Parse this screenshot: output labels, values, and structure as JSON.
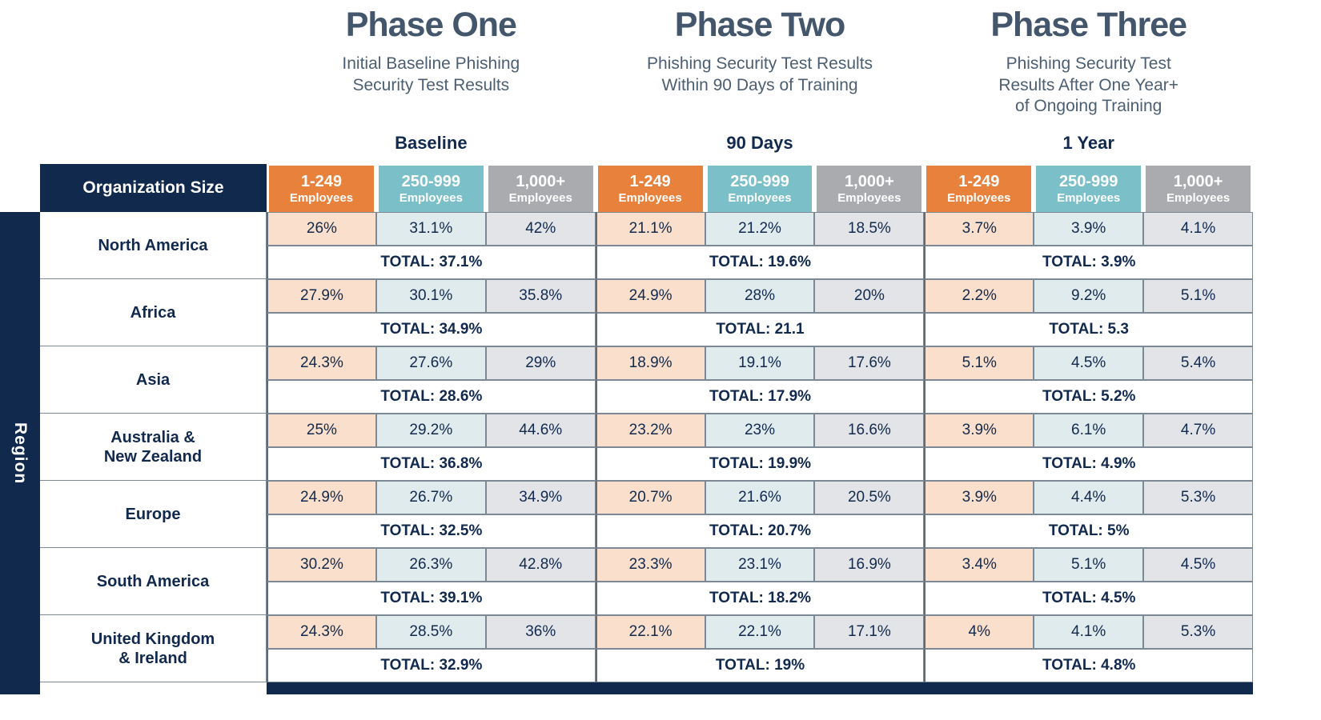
{
  "phases": [
    {
      "title": "Phase One",
      "subtitle": "Initial Baseline Phishing\nSecurity Test Results",
      "group_label": "Baseline"
    },
    {
      "title": "Phase Two",
      "subtitle": "Phishing Security Test Results\nWithin 90 Days of Training",
      "group_label": "90 Days"
    },
    {
      "title": "Phase Three",
      "subtitle": "Phishing Security Test\nResults After One Year+\nof Ongoing Training",
      "group_label": "1 Year"
    }
  ],
  "header": {
    "org_size_label": "Organization Size",
    "region_axis_label": "Region",
    "employee_columns": [
      {
        "range": "1-249",
        "label": "Employees",
        "color": "#E8813B",
        "tint": "#FAE0CC"
      },
      {
        "range": "250-999",
        "label": "Employees",
        "color": "#7BBFC8",
        "tint": "#E0EBED"
      },
      {
        "range": "1,000+",
        "label": "Employees",
        "color": "#A9ABAE",
        "tint": "#E2E4E8"
      }
    ]
  },
  "regions": [
    {
      "name": "North America",
      "values": [
        [
          "26%",
          "31.1%",
          "42%"
        ],
        [
          "21.1%",
          "21.2%",
          "18.5%"
        ],
        [
          "3.7%",
          "3.9%",
          "4.1%"
        ]
      ],
      "totals": [
        "TOTAL: 37.1%",
        "TOTAL: 19.6%",
        "TOTAL: 3.9%"
      ]
    },
    {
      "name": "Africa",
      "values": [
        [
          "27.9%",
          "30.1%",
          "35.8%"
        ],
        [
          "24.9%",
          "28%",
          "20%"
        ],
        [
          "2.2%",
          "9.2%",
          "5.1%"
        ]
      ],
      "totals": [
        "TOTAL: 34.9%",
        "TOTAL: 21.1",
        "TOTAL: 5.3"
      ]
    },
    {
      "name": "Asia",
      "values": [
        [
          "24.3%",
          "27.6%",
          "29%"
        ],
        [
          "18.9%",
          "19.1%",
          "17.6%"
        ],
        [
          "5.1%",
          "4.5%",
          "5.4%"
        ]
      ],
      "totals": [
        "TOTAL: 28.6%",
        "TOTAL: 17.9%",
        "TOTAL: 5.2%"
      ]
    },
    {
      "name": "Australia &\nNew Zealand",
      "values": [
        [
          "25%",
          "29.2%",
          "44.6%"
        ],
        [
          "23.2%",
          "23%",
          "16.6%"
        ],
        [
          "3.9%",
          "6.1%",
          "4.7%"
        ]
      ],
      "totals": [
        "TOTAL: 36.8%",
        "TOTAL: 19.9%",
        "TOTAL: 4.9%"
      ]
    },
    {
      "name": "Europe",
      "values": [
        [
          "24.9%",
          "26.7%",
          "34.9%"
        ],
        [
          "20.7%",
          "21.6%",
          "20.5%"
        ],
        [
          "3.9%",
          "4.4%",
          "5.3%"
        ]
      ],
      "totals": [
        "TOTAL: 32.5%",
        "TOTAL: 20.7%",
        "TOTAL: 5%"
      ]
    },
    {
      "name": "South America",
      "values": [
        [
          "30.2%",
          "26.3%",
          "42.8%"
        ],
        [
          "23.3%",
          "23.1%",
          "16.9%"
        ],
        [
          "3.4%",
          "5.1%",
          "4.5%"
        ]
      ],
      "totals": [
        "TOTAL: 39.1%",
        "TOTAL: 18.2%",
        "TOTAL: 4.5%"
      ]
    },
    {
      "name": "United Kingdom\n& Ireland",
      "values": [
        [
          "24.3%",
          "28.5%",
          "36%"
        ],
        [
          "22.1%",
          "22.1%",
          "17.1%"
        ],
        [
          "4%",
          "4.1%",
          "5.3%"
        ]
      ],
      "totals": [
        "TOTAL: 32.9%",
        "TOTAL: 19%",
        "TOTAL: 4.8%"
      ]
    }
  ],
  "colors": {
    "navy": "#12294E",
    "orange": "#E8813B",
    "teal": "#7BBFC8",
    "gray": "#A9ABAE",
    "orange_tint": "#FAE0CC",
    "teal_tint": "#E0EBED",
    "gray_tint": "#E2E4E8",
    "cell_border": "#7C8894",
    "phase_divider": "#5E6A76",
    "title_slate": "#44566B"
  },
  "chart_data": {
    "type": "table",
    "title": "Phishing Security Test Results by Region and Organization Size",
    "phases": [
      "Baseline",
      "90 Days",
      "1 Year"
    ],
    "org_sizes": [
      "1-249 Employees",
      "250-999 Employees",
      "1,000+ Employees"
    ],
    "regions": [
      "North America",
      "Africa",
      "Asia",
      "Australia & New Zealand",
      "Europe",
      "South America",
      "United Kingdom & Ireland"
    ],
    "values_pct": {
      "North America": [
        [
          26,
          31.1,
          42
        ],
        [
          21.1,
          21.2,
          18.5
        ],
        [
          3.7,
          3.9,
          4.1
        ]
      ],
      "Africa": [
        [
          27.9,
          30.1,
          35.8
        ],
        [
          24.9,
          28,
          20
        ],
        [
          2.2,
          9.2,
          5.1
        ]
      ],
      "Asia": [
        [
          24.3,
          27.6,
          29
        ],
        [
          18.9,
          19.1,
          17.6
        ],
        [
          5.1,
          4.5,
          5.4
        ]
      ],
      "Australia & New Zealand": [
        [
          25,
          29.2,
          44.6
        ],
        [
          23.2,
          23,
          16.6
        ],
        [
          3.9,
          6.1,
          4.7
        ]
      ],
      "Europe": [
        [
          24.9,
          26.7,
          34.9
        ],
        [
          20.7,
          21.6,
          20.5
        ],
        [
          3.9,
          4.4,
          5.3
        ]
      ],
      "South America": [
        [
          30.2,
          26.3,
          42.8
        ],
        [
          23.3,
          23.1,
          16.9
        ],
        [
          3.4,
          5.1,
          4.5
        ]
      ],
      "United Kingdom & Ireland": [
        [
          24.3,
          28.5,
          36
        ],
        [
          22.1,
          22.1,
          17.1
        ],
        [
          4,
          4.1,
          5.3
        ]
      ]
    },
    "totals_pct": {
      "North America": [
        37.1,
        19.6,
        3.9
      ],
      "Africa": [
        34.9,
        21.1,
        5.3
      ],
      "Asia": [
        28.6,
        17.9,
        5.2
      ],
      "Australia & New Zealand": [
        36.8,
        19.9,
        4.9
      ],
      "Europe": [
        32.5,
        20.7,
        5.0
      ],
      "South America": [
        39.1,
        18.2,
        4.5
      ],
      "United Kingdom & Ireland": [
        32.9,
        19.0,
        4.8
      ]
    }
  }
}
